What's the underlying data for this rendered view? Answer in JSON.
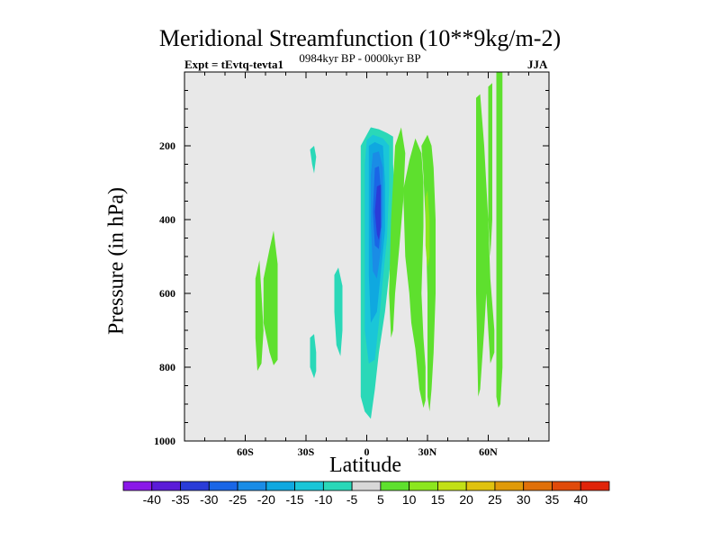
{
  "chart_data": {
    "type": "contour",
    "title": "Meridional Streamfunction (10**9kg/m-2)",
    "experiment": "Expt = tEvtq-tevta1",
    "period": "0984kyr BP - 0000kyr BP",
    "season": "JJA",
    "xlabel": "Latitude",
    "ylabel": "Pressure (in hPa)",
    "xlim": [
      -90,
      90
    ],
    "ylim": [
      1000,
      0
    ],
    "x_ticks": [
      {
        "value": -60,
        "label": "60S"
      },
      {
        "value": -30,
        "label": "30S"
      },
      {
        "value": 0,
        "label": "0"
      },
      {
        "value": 30,
        "label": "30N"
      },
      {
        "value": 60,
        "label": "60N"
      }
    ],
    "y_ticks": [
      {
        "value": 200,
        "label": "200"
      },
      {
        "value": 400,
        "label": "400"
      },
      {
        "value": 600,
        "label": "600"
      },
      {
        "value": 800,
        "label": "800"
      },
      {
        "value": 1000,
        "label": "1000"
      }
    ],
    "levels": [
      "-40",
      "-35",
      "-30",
      "-25",
      "-20",
      "-15",
      "-10",
      "-5",
      "5",
      "10",
      "15",
      "20",
      "25",
      "30",
      "35",
      "40"
    ],
    "level_colors": [
      "#8a18e8",
      "#5b1cd8",
      "#2a3cd8",
      "#1a66e6",
      "#1a8ce6",
      "#0fa8e0",
      "#1ac6d8",
      "#2ad8b8",
      "#d8d8d8",
      "#5ee02e",
      "#8ce61e",
      "#c2e016",
      "#e0c20e",
      "#e09a0a",
      "#e0700a",
      "#e04a0a",
      "#e0240a"
    ],
    "regions": [
      {
        "name": "negative-center",
        "polygon": [
          [
            -1,
            180
          ],
          [
            2,
            150
          ],
          [
            6,
            155
          ],
          [
            10,
            165
          ],
          [
            13,
            175
          ],
          [
            13,
            250
          ],
          [
            14,
            350
          ],
          [
            13,
            450
          ],
          [
            11,
            550
          ],
          [
            9,
            650
          ],
          [
            6,
            760
          ],
          [
            4,
            860
          ],
          [
            2,
            940
          ],
          [
            -1,
            920
          ],
          [
            -3,
            880
          ],
          [
            -3,
            700
          ],
          [
            -3,
            500
          ],
          [
            -3,
            300
          ],
          [
            -3,
            200
          ]
        ],
        "color": "#2ad8b8"
      },
      {
        "name": "negative-ring-1",
        "polygon": [
          [
            0,
            185
          ],
          [
            3,
            170
          ],
          [
            8,
            180
          ],
          [
            11,
            200
          ],
          [
            11,
            320
          ],
          [
            10,
            450
          ],
          [
            8,
            560
          ],
          [
            6,
            680
          ],
          [
            4,
            780
          ],
          [
            1,
            790
          ],
          [
            -1,
            700
          ],
          [
            -1,
            450
          ],
          [
            -1,
            250
          ]
        ],
        "color": "#1ac6d8"
      },
      {
        "name": "negative-ring-2",
        "polygon": [
          [
            1,
            200
          ],
          [
            4,
            190
          ],
          [
            8,
            200
          ],
          [
            9,
            300
          ],
          [
            9,
            430
          ],
          [
            7,
            540
          ],
          [
            5,
            650
          ],
          [
            2,
            680
          ],
          [
            1,
            550
          ],
          [
            1,
            350
          ]
        ],
        "color": "#0fa8e0"
      },
      {
        "name": "negative-ring-3",
        "polygon": [
          [
            3,
            220
          ],
          [
            6,
            215
          ],
          [
            8,
            260
          ],
          [
            8,
            380
          ],
          [
            7,
            480
          ],
          [
            5,
            560
          ],
          [
            3,
            540
          ],
          [
            2,
            400
          ],
          [
            2,
            280
          ]
        ],
        "color": "#1a8ce6"
      },
      {
        "name": "negative-ring-4",
        "polygon": [
          [
            4,
            260
          ],
          [
            6,
            255
          ],
          [
            7,
            320
          ],
          [
            7,
            420
          ],
          [
            6,
            480
          ],
          [
            4,
            470
          ],
          [
            3,
            380
          ]
        ],
        "color": "#1a66e6"
      },
      {
        "name": "negative-core",
        "polygon": [
          [
            5,
            310
          ],
          [
            7,
            305
          ],
          [
            7,
            360
          ],
          [
            7,
            420
          ],
          [
            6,
            455
          ],
          [
            5,
            440
          ],
          [
            4,
            380
          ]
        ],
        "color": "#2a3cd8"
      },
      {
        "name": "negative-south-1",
        "polygon": [
          [
            -28,
            210
          ],
          [
            -26,
            200
          ],
          [
            -25,
            230
          ],
          [
            -26,
            275
          ],
          [
            -27,
            250
          ]
        ],
        "color": "#2ad8b8"
      },
      {
        "name": "negative-south-2",
        "polygon": [
          [
            -16,
            550
          ],
          [
            -14,
            530
          ],
          [
            -12,
            580
          ],
          [
            -12,
            700
          ],
          [
            -13,
            770
          ],
          [
            -15,
            740
          ],
          [
            -16,
            650
          ]
        ],
        "color": "#2ad8b8"
      },
      {
        "name": "negative-south-3",
        "polygon": [
          [
            -28,
            720
          ],
          [
            -26,
            710
          ],
          [
            -25,
            760
          ],
          [
            -25,
            810
          ],
          [
            -26,
            830
          ],
          [
            -28,
            800
          ]
        ],
        "color": "#2ad8b8"
      },
      {
        "name": "positive-sh-1",
        "polygon": [
          [
            -55,
            560
          ],
          [
            -53,
            510
          ],
          [
            -52,
            600
          ],
          [
            -51,
            700
          ],
          [
            -52,
            790
          ],
          [
            -54,
            810
          ],
          [
            -55,
            720
          ]
        ],
        "color": "#5ee02e"
      },
      {
        "name": "positive-sh-2",
        "polygon": [
          [
            -51,
            560
          ],
          [
            -48,
            480
          ],
          [
            -46,
            430
          ],
          [
            -44,
            520
          ],
          [
            -44,
            650
          ],
          [
            -44,
            780
          ],
          [
            -46,
            795
          ],
          [
            -48,
            760
          ],
          [
            -51,
            680
          ]
        ],
        "color": "#5ee02e"
      },
      {
        "name": "positive-ne-1",
        "polygon": [
          [
            12,
            400
          ],
          [
            14,
            200
          ],
          [
            17,
            150
          ],
          [
            19,
            220
          ],
          [
            18,
            350
          ],
          [
            16,
            480
          ],
          [
            14,
            600
          ],
          [
            13,
            700
          ],
          [
            12,
            720
          ],
          [
            11,
            600
          ]
        ],
        "color": "#5ee02e"
      },
      {
        "name": "positive-ne-2",
        "polygon": [
          [
            18,
            320
          ],
          [
            21,
            240
          ],
          [
            24,
            180
          ],
          [
            27,
            220
          ],
          [
            28,
            300
          ],
          [
            28,
            420
          ],
          [
            27,
            600
          ],
          [
            28,
            720
          ],
          [
            29,
            800
          ],
          [
            29,
            890
          ],
          [
            28,
            910
          ],
          [
            26,
            860
          ],
          [
            24,
            750
          ],
          [
            22,
            680
          ],
          [
            21,
            600
          ],
          [
            19,
            500
          ]
        ],
        "color": "#5ee02e"
      },
      {
        "name": "positive-ne-3",
        "polygon": [
          [
            27,
            200
          ],
          [
            30,
            170
          ],
          [
            32,
            200
          ],
          [
            33,
            260
          ],
          [
            34,
            400
          ],
          [
            34,
            600
          ],
          [
            33,
            760
          ],
          [
            32,
            860
          ],
          [
            31,
            920
          ],
          [
            30,
            880
          ],
          [
            30,
            600
          ],
          [
            29,
            400
          ],
          [
            28,
            280
          ]
        ],
        "color": "#5ee02e"
      },
      {
        "name": "positive-ne-core",
        "polygon": [
          [
            29,
            340
          ],
          [
            30,
            320
          ],
          [
            31,
            400
          ],
          [
            31,
            500
          ],
          [
            30,
            530
          ],
          [
            29,
            470
          ]
        ],
        "color": "#8ce61e"
      },
      {
        "name": "positive-nh-1",
        "polygon": [
          [
            54,
            70
          ],
          [
            56,
            60
          ],
          [
            58,
            200
          ],
          [
            60,
            400
          ],
          [
            61,
            560
          ],
          [
            63,
            700
          ],
          [
            63,
            760
          ],
          [
            61,
            790
          ],
          [
            60,
            700
          ],
          [
            59,
            600
          ],
          [
            58,
            700
          ],
          [
            56,
            860
          ],
          [
            55,
            880
          ],
          [
            54,
            600
          ]
        ],
        "color": "#5ee02e"
      },
      {
        "name": "positive-nh-2",
        "polygon": [
          [
            60,
            40
          ],
          [
            62,
            30
          ],
          [
            62,
            200
          ],
          [
            62,
            400
          ],
          [
            61,
            500
          ],
          [
            60,
            400
          ],
          [
            60,
            200
          ]
        ],
        "color": "#5ee02e"
      },
      {
        "name": "positive-nh-3",
        "polygon": [
          [
            64,
            0
          ],
          [
            67,
            0
          ],
          [
            67,
            200
          ],
          [
            67,
            500
          ],
          [
            67,
            800
          ],
          [
            66,
            900
          ],
          [
            65,
            910
          ],
          [
            64,
            880
          ],
          [
            64,
            600
          ],
          [
            64,
            300
          ]
        ],
        "color": "#5ee02e"
      }
    ]
  }
}
